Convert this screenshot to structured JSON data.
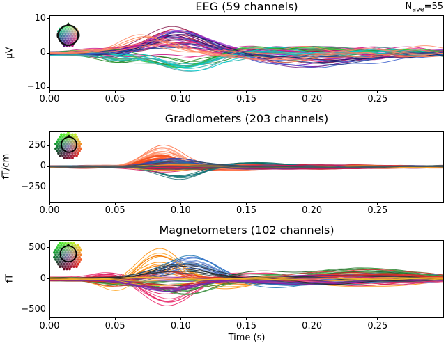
{
  "figure": {
    "nave": {
      "prefix": "N",
      "sub": "ave",
      "rest": "=55"
    },
    "background": "#ffffff",
    "spine_color": "#000000"
  },
  "chart_data": {
    "type": "line",
    "subtype": "evoked-butterfly",
    "seed": 7,
    "xlabel": "Time (s)",
    "xlim": [
      0,
      0.3
    ],
    "xticks": [
      0,
      0.05,
      0.1,
      0.15,
      0.2,
      0.25
    ],
    "xticklabels": [
      "0.00",
      "0.05",
      "0.10",
      "0.15",
      "0.20",
      "0.25"
    ],
    "nave": 55,
    "panels": [
      {
        "id": "eeg",
        "title": "EEG (59 channels)",
        "ylabel": "μV",
        "n_channels": 59,
        "ylim": [
          -11,
          11
        ],
        "yticks": [
          10,
          0,
          -10
        ],
        "yticklabels": [
          "10",
          "0",
          "−10"
        ],
        "inset_style": "eeg-head",
        "series_groups": [
          {
            "n": 10,
            "colors": [
              "#8b2252",
              "#a4133c",
              "#c9184a",
              "#d94f4f"
            ],
            "noise": 0.6,
            "offset": 0.5,
            "bumps": [
              {
                "t": 0.05,
                "w": 0.016,
                "amp": [
                  -1.5,
                  1.2
                ]
              },
              {
                "t": 0.096,
                "w": 0.028,
                "amp": [
                  3,
                  8.3
                ]
              },
              {
                "t": 0.205,
                "w": 0.045,
                "amp": [
                  -3,
                  1
                ]
              }
            ]
          },
          {
            "n": 11,
            "colors": [
              "#6a0dad",
              "#7b2d8e",
              "#9932cc",
              "#4b0082"
            ],
            "noise": 0.6,
            "offset": 0.5,
            "bumps": [
              {
                "t": 0.05,
                "w": 0.016,
                "amp": [
                  -1,
                  1
                ]
              },
              {
                "t": 0.098,
                "w": 0.03,
                "amp": [
                  1.5,
                  7
                ]
              },
              {
                "t": 0.2,
                "w": 0.045,
                "amp": [
                  -4,
                  1.5
                ]
              }
            ]
          },
          {
            "n": 8,
            "colors": [
              "#c71585",
              "#d02090",
              "#ee3a8c"
            ],
            "noise": 0.7,
            "offset": 0.5,
            "bumps": [
              {
                "t": 0.09,
                "w": 0.03,
                "amp": [
                  -2,
                  5
                ]
              },
              {
                "t": 0.21,
                "w": 0.05,
                "amp": [
                  -2.5,
                  2.5
                ]
              }
            ]
          },
          {
            "n": 9,
            "colors": [
              "#228b22",
              "#2e8b57",
              "#3cb371",
              "#32cd32"
            ],
            "noise": 0.7,
            "offset": 0.6,
            "bumps": [
              {
                "t": 0.052,
                "w": 0.018,
                "amp": [
                  -2.2,
                  0.5
                ]
              },
              {
                "t": 0.1,
                "w": 0.03,
                "amp": [
                  -5,
                  -0.3
                ]
              },
              {
                "t": 0.19,
                "w": 0.05,
                "amp": [
                  -1,
                  2
                ]
              }
            ]
          },
          {
            "n": 8,
            "colors": [
              "#20b2aa",
              "#00ced1",
              "#5f9ea0"
            ],
            "noise": 0.7,
            "offset": 0.6,
            "bumps": [
              {
                "t": 0.055,
                "w": 0.02,
                "amp": [
                  -2.5,
                  -0.5
                ]
              },
              {
                "t": 0.105,
                "w": 0.03,
                "amp": [
                  -5.6,
                  -1.5
                ]
              },
              {
                "t": 0.2,
                "w": 0.05,
                "amp": [
                  -1,
                  1.5
                ]
              }
            ]
          },
          {
            "n": 7,
            "colors": [
              "#27408b",
              "#3a5fcd",
              "#16165c"
            ],
            "noise": 0.6,
            "offset": 0.5,
            "bumps": [
              {
                "t": 0.1,
                "w": 0.03,
                "amp": [
                  1,
                  6.5
                ]
              },
              {
                "t": 0.21,
                "w": 0.05,
                "amp": [
                  -4.5,
                  -0.5
                ]
              }
            ]
          },
          {
            "n": 6,
            "colors": [
              "#ff7f50",
              "#fa8072",
              "#ff8c69"
            ],
            "noise": 0.7,
            "offset": 0.6,
            "bumps": [
              {
                "t": 0.075,
                "w": 0.025,
                "amp": [
                  2,
                  6
                ]
              },
              {
                "t": 0.17,
                "w": 0.04,
                "amp": [
                  -2,
                  1
                ]
              },
              {
                "t": 0.25,
                "w": 0.05,
                "amp": [
                  -1.5,
                  1.5
                ]
              }
            ]
          }
        ]
      },
      {
        "id": "grad",
        "title": "Gradiometers (203 channels)",
        "ylabel": "fT/cm",
        "n_channels": 203,
        "ylim": [
          -430,
          430
        ],
        "yticks": [
          250,
          0,
          -250
        ],
        "yticklabels": [
          "250",
          "0",
          "−250"
        ],
        "inset_style": "meg-head",
        "series_groups": [
          {
            "n": 36,
            "colors": [
              "#d62728",
              "#e03c1f",
              "#c62828",
              "#ef3b24"
            ],
            "noise": 8,
            "offset": 15,
            "bumps": [
              {
                "t": 0.082,
                "w": 0.02,
                "amp": [
                  -35,
                  85
                ]
              },
              {
                "t": 0.13,
                "w": 0.04,
                "amp": [
                  -30,
                  28
                ]
              },
              {
                "t": 0.2,
                "w": 0.06,
                "amp": [
                  -22,
                  22
                ]
              }
            ]
          },
          {
            "n": 14,
            "colors": [
              "#ff5722",
              "#f4511e"
            ],
            "noise": 7,
            "offset": 12,
            "bumps": [
              {
                "t": 0.085,
                "w": 0.02,
                "amp": [
                  60,
                  150
                ]
              },
              {
                "t": 0.15,
                "w": 0.045,
                "amp": [
                  -40,
                  15
                ]
              }
            ]
          },
          {
            "n": 8,
            "colors": [
              "#ffa07a",
              "#ff8a65",
              "#ff7043"
            ],
            "noise": 6,
            "offset": 10,
            "bumps": [
              {
                "t": 0.086,
                "w": 0.021,
                "amp": [
                  150,
                  265
                ]
              },
              {
                "t": 0.14,
                "w": 0.04,
                "amp": [
                  -45,
                  10
                ]
              }
            ]
          },
          {
            "n": 6,
            "colors": [
              "#00838f",
              "#00695c",
              "#26747c"
            ],
            "noise": 6,
            "offset": 10,
            "bumps": [
              {
                "t": 0.1,
                "w": 0.024,
                "amp": [
                  -165,
                  -75
                ]
              },
              {
                "t": 0.15,
                "w": 0.045,
                "amp": [
                  5,
                  55
                ]
              }
            ]
          },
          {
            "n": 8,
            "colors": [
              "#3949ab",
              "#1f77b4",
              "#303f9f"
            ],
            "noise": 6,
            "offset": 10,
            "bumps": [
              {
                "t": 0.095,
                "w": 0.025,
                "amp": [
                  25,
                  105
                ]
              },
              {
                "t": 0.16,
                "w": 0.05,
                "amp": [
                  -40,
                  15
                ]
              }
            ]
          },
          {
            "n": 10,
            "colors": [
              "#c2185b",
              "#ad1457",
              "#d81b60"
            ],
            "noise": 7,
            "offset": 12,
            "bumps": [
              {
                "t": 0.09,
                "w": 0.025,
                "amp": [
                  -75,
                  55
                ]
              },
              {
                "t": 0.2,
                "w": 0.055,
                "amp": [
                  -28,
                  25
                ]
              }
            ]
          },
          {
            "n": 4,
            "colors": [
              "#e6a817",
              "#f9a825"
            ],
            "noise": 6,
            "offset": 10,
            "bumps": [
              {
                "t": 0.09,
                "w": 0.03,
                "amp": [
                  -55,
                  35
                ]
              }
            ]
          },
          {
            "n": 6,
            "colors": [
              "#37474f",
              "#455a64"
            ],
            "noise": 6,
            "offset": 10,
            "bumps": [
              {
                "t": 0.1,
                "w": 0.03,
                "amp": [
                  -55,
                  75
                ]
              }
            ]
          }
        ]
      },
      {
        "id": "mag",
        "title": "Magnetometers (102 channels)",
        "ylabel": "fT",
        "n_channels": 102,
        "ylim": [
          -620,
          620
        ],
        "yticks": [
          500,
          0,
          -500
        ],
        "yticklabels": [
          "500",
          "0",
          "−500"
        ],
        "inset_style": "meg-head",
        "series_groups": [
          {
            "n": 12,
            "colors": [
              "#ff8c00",
              "#fb8c00",
              "#ffa726",
              "#ef6c00"
            ],
            "noise": 16,
            "offset": 35,
            "bumps": [
              {
                "t": 0.052,
                "w": 0.018,
                "amp": [
                  -190,
                  -50
                ]
              },
              {
                "t": 0.083,
                "w": 0.024,
                "amp": [
                  140,
                  500
                ]
              },
              {
                "t": 0.135,
                "w": 0.035,
                "amp": [
                  -140,
                  -10
                ]
              },
              {
                "t": 0.24,
                "w": 0.06,
                "amp": [
                  -110,
                  110
                ]
              }
            ]
          },
          {
            "n": 13,
            "colors": [
              "#1f77b4",
              "#3f6fd1",
              "#27408b",
              "#5b84d4"
            ],
            "noise": 16,
            "offset": 35,
            "bumps": [
              {
                "t": 0.06,
                "w": 0.02,
                "amp": [
                  -80,
                  40
                ]
              },
              {
                "t": 0.108,
                "w": 0.028,
                "amp": [
                  110,
                  460
                ]
              },
              {
                "t": 0.175,
                "w": 0.04,
                "amp": [
                  -120,
                  -10
                ]
              },
              {
                "t": 0.25,
                "w": 0.06,
                "amp": [
                  -70,
                  100
                ]
              }
            ]
          },
          {
            "n": 11,
            "colors": [
              "#e91e63",
              "#ec407a",
              "#d81b60",
              "#f06292"
            ],
            "noise": 16,
            "offset": 35,
            "bumps": [
              {
                "t": 0.047,
                "w": 0.018,
                "amp": [
                  30,
                  140
                ]
              },
              {
                "t": 0.091,
                "w": 0.026,
                "amp": [
                  -455,
                  -110
                ]
              },
              {
                "t": 0.15,
                "w": 0.04,
                "amp": [
                  0,
                  100
                ]
              },
              {
                "t": 0.23,
                "w": 0.06,
                "amp": [
                  -80,
                  70
                ]
              }
            ]
          },
          {
            "n": 10,
            "colors": [
              "#2e7d32",
              "#43a047",
              "#66bb6a",
              "#1b5e20"
            ],
            "noise": 15,
            "offset": 30,
            "bumps": [
              {
                "t": 0.052,
                "w": 0.02,
                "amp": [
                  -110,
                  60
                ]
              },
              {
                "t": 0.102,
                "w": 0.03,
                "amp": [
                  -250,
                  -30
                ]
              },
              {
                "t": 0.155,
                "w": 0.04,
                "amp": [
                  -50,
                  110
                ]
              },
              {
                "t": 0.24,
                "w": 0.05,
                "amp": [
                  50,
                  190
                ]
              }
            ]
          },
          {
            "n": 10,
            "colors": [
              "#d32f2f",
              "#c62828",
              "#e53935"
            ],
            "noise": 15,
            "offset": 30,
            "bumps": [
              {
                "t": 0.045,
                "w": 0.02,
                "amp": [
                  -70,
                  70
                ]
              },
              {
                "t": 0.088,
                "w": 0.026,
                "amp": [
                  -140,
                  150
                ]
              },
              {
                "t": 0.24,
                "w": 0.06,
                "amp": [
                  50,
                  170
                ]
              }
            ]
          },
          {
            "n": 8,
            "colors": [
              "#7b1fa2",
              "#8e24aa",
              "#5e35b1"
            ],
            "noise": 15,
            "offset": 30,
            "bumps": [
              {
                "t": 0.09,
                "w": 0.03,
                "amp": [
                  -190,
                  90
                ]
              },
              {
                "t": 0.2,
                "w": 0.05,
                "amp": [
                  -90,
                  60
                ]
              }
            ]
          },
          {
            "n": 6,
            "colors": [
              "#263238",
              "#37474f",
              "#212121"
            ],
            "noise": 14,
            "offset": 26,
            "bumps": [
              {
                "t": 0.1,
                "w": 0.03,
                "amp": [
                  70,
                  300
                ]
              },
              {
                "t": 0.22,
                "w": 0.05,
                "amp": [
                  -80,
                  60
                ]
              }
            ]
          },
          {
            "n": 4,
            "colors": [
              "#f9a825",
              "#fbc02d"
            ],
            "noise": 14,
            "offset": 26,
            "bumps": [
              {
                "t": 0.08,
                "w": 0.03,
                "amp": [
                  -140,
                  80
                ]
              }
            ]
          }
        ]
      }
    ]
  }
}
